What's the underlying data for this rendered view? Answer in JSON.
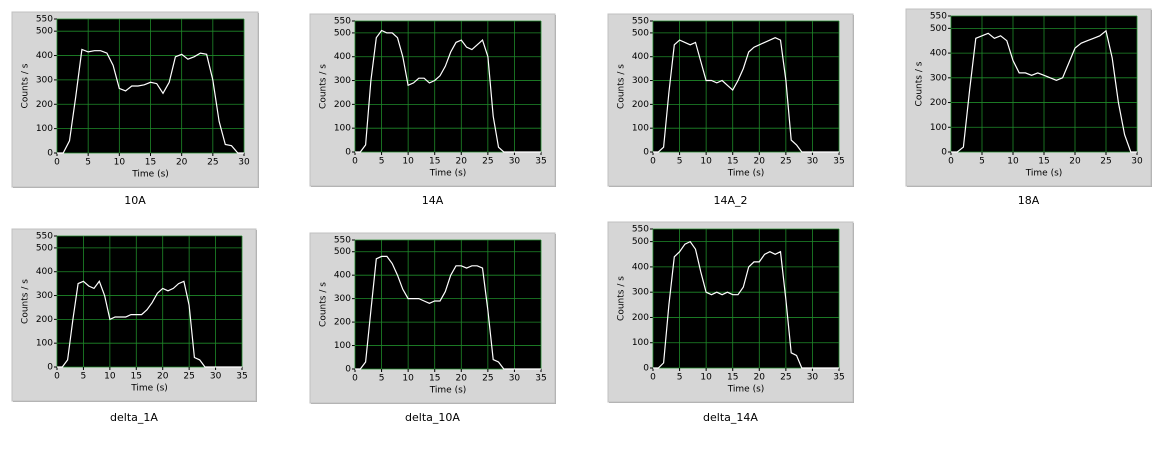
{
  "chart_data": [
    {
      "type": "line",
      "caption": "10A",
      "xlabel": "Time (s)",
      "ylabel": "Counts / s",
      "grid": true,
      "color": "#ffffff",
      "x": [
        0,
        1,
        2,
        3,
        4,
        5,
        6,
        7,
        8,
        9,
        10,
        11,
        12,
        13,
        14,
        15,
        16,
        17,
        18,
        19,
        20,
        21,
        22,
        23,
        24,
        25,
        26,
        27,
        28,
        29,
        30
      ],
      "values": [
        0,
        0,
        50,
        230,
        425,
        415,
        420,
        420,
        410,
        360,
        265,
        255,
        275,
        275,
        280,
        290,
        285,
        245,
        290,
        395,
        405,
        385,
        395,
        410,
        405,
        300,
        130,
        35,
        30,
        0,
        0
      ],
      "xlim": [
        0,
        30
      ],
      "xticks": [
        0,
        5,
        10,
        15,
        20,
        25,
        30
      ],
      "ylim": [
        0,
        550
      ],
      "yticks": [
        0,
        100,
        200,
        300,
        400,
        500,
        550
      ]
    },
    {
      "type": "line",
      "caption": "14A",
      "xlabel": "Time (s)",
      "ylabel": "Counts / s",
      "grid": true,
      "color": "#ffffff",
      "x": [
        0,
        1,
        2,
        3,
        4,
        5,
        6,
        7,
        8,
        9,
        10,
        11,
        12,
        13,
        14,
        15,
        16,
        17,
        18,
        19,
        20,
        21,
        22,
        23,
        24,
        25,
        26,
        27,
        28,
        29,
        30,
        31,
        32,
        33,
        34,
        35
      ],
      "values": [
        0,
        0,
        30,
        300,
        480,
        510,
        500,
        500,
        480,
        400,
        280,
        290,
        310,
        310,
        290,
        300,
        320,
        360,
        420,
        460,
        470,
        440,
        430,
        450,
        470,
        400,
        150,
        20,
        0,
        0,
        0,
        0,
        0,
        0,
        0,
        0
      ],
      "xlim": [
        0,
        35
      ],
      "xticks": [
        0,
        5,
        10,
        15,
        20,
        25,
        30,
        35
      ],
      "ylim": [
        0,
        550
      ],
      "yticks": [
        0,
        100,
        200,
        300,
        400,
        500,
        550
      ]
    },
    {
      "type": "line",
      "caption": "14A_2",
      "xlabel": "Time (s)",
      "ylabel": "Counts / s",
      "grid": true,
      "color": "#ffffff",
      "x": [
        0,
        1,
        2,
        3,
        4,
        5,
        6,
        7,
        8,
        9,
        10,
        11,
        12,
        13,
        14,
        15,
        16,
        17,
        18,
        19,
        20,
        21,
        22,
        23,
        24,
        25,
        26,
        27,
        28,
        29,
        30,
        31,
        32,
        33,
        34,
        35
      ],
      "values": [
        0,
        0,
        20,
        250,
        450,
        470,
        460,
        450,
        460,
        380,
        300,
        300,
        290,
        300,
        280,
        260,
        300,
        350,
        420,
        440,
        450,
        460,
        470,
        480,
        470,
        300,
        50,
        30,
        0,
        0,
        0,
        0,
        0,
        0,
        0,
        0
      ],
      "xlim": [
        0,
        35
      ],
      "xticks": [
        0,
        5,
        10,
        15,
        20,
        25,
        30,
        35
      ],
      "ylim": [
        0,
        550
      ],
      "yticks": [
        0,
        100,
        200,
        300,
        400,
        500,
        550
      ]
    },
    {
      "type": "line",
      "caption": "18A",
      "xlabel": "Time (s)",
      "ylabel": "Counts / s",
      "grid": true,
      "color": "#ffffff",
      "x": [
        0,
        1,
        2,
        3,
        4,
        5,
        6,
        7,
        8,
        9,
        10,
        11,
        12,
        13,
        14,
        15,
        16,
        17,
        18,
        19,
        20,
        21,
        22,
        23,
        24,
        25,
        26,
        27,
        28,
        29,
        30
      ],
      "values": [
        0,
        0,
        20,
        250,
        460,
        470,
        480,
        460,
        470,
        450,
        370,
        320,
        320,
        310,
        320,
        310,
        300,
        290,
        300,
        360,
        420,
        440,
        450,
        460,
        470,
        490,
        380,
        200,
        70,
        0,
        0
      ],
      "xlim": [
        0,
        30
      ],
      "xticks": [
        0,
        5,
        10,
        15,
        20,
        25,
        30
      ],
      "ylim": [
        0,
        550
      ],
      "yticks": [
        0,
        100,
        200,
        300,
        400,
        500,
        550
      ]
    },
    {
      "type": "line",
      "caption": "delta_1A",
      "xlabel": "Time (s)",
      "ylabel": "Counts / s",
      "grid": true,
      "color": "#ffffff",
      "x": [
        0,
        1,
        2,
        3,
        4,
        5,
        6,
        7,
        8,
        9,
        10,
        11,
        12,
        13,
        14,
        15,
        16,
        17,
        18,
        19,
        20,
        21,
        22,
        23,
        24,
        25,
        26,
        27,
        28,
        29,
        30,
        31,
        32,
        33,
        34,
        35
      ],
      "values": [
        0,
        0,
        30,
        200,
        350,
        360,
        340,
        330,
        360,
        300,
        200,
        210,
        210,
        210,
        220,
        220,
        220,
        240,
        270,
        310,
        330,
        320,
        330,
        350,
        360,
        260,
        40,
        30,
        0,
        0,
        0,
        0,
        0,
        0,
        0,
        0
      ],
      "xlim": [
        0,
        35
      ],
      "xticks": [
        0,
        5,
        10,
        15,
        20,
        25,
        30,
        35
      ],
      "ylim": [
        0,
        550
      ],
      "yticks": [
        0,
        100,
        200,
        300,
        400,
        500,
        550
      ]
    },
    {
      "type": "line",
      "caption": "delta_10A",
      "xlabel": "Time (s)",
      "ylabel": "Counts / s",
      "grid": true,
      "color": "#ffffff",
      "x": [
        0,
        1,
        2,
        3,
        4,
        5,
        6,
        7,
        8,
        9,
        10,
        11,
        12,
        13,
        14,
        15,
        16,
        17,
        18,
        19,
        20,
        21,
        22,
        23,
        24,
        25,
        26,
        27,
        28,
        29,
        30,
        31,
        32,
        33,
        34,
        35
      ],
      "values": [
        0,
        0,
        30,
        250,
        470,
        480,
        480,
        450,
        400,
        340,
        300,
        300,
        300,
        290,
        280,
        290,
        290,
        330,
        400,
        440,
        440,
        430,
        440,
        440,
        430,
        250,
        40,
        30,
        0,
        0,
        0,
        0,
        0,
        0,
        0,
        0
      ],
      "xlim": [
        0,
        35
      ],
      "xticks": [
        0,
        5,
        10,
        15,
        20,
        25,
        30,
        35
      ],
      "ylim": [
        0,
        550
      ],
      "yticks": [
        0,
        100,
        200,
        300,
        400,
        500,
        550
      ]
    },
    {
      "type": "line",
      "caption": "delta_14A",
      "xlabel": "Time (s)",
      "ylabel": "Counts / s",
      "grid": true,
      "color": "#ffffff",
      "x": [
        0,
        1,
        2,
        3,
        4,
        5,
        6,
        7,
        8,
        9,
        10,
        11,
        12,
        13,
        14,
        15,
        16,
        17,
        18,
        19,
        20,
        21,
        22,
        23,
        24,
        25,
        26,
        27,
        28,
        29,
        30,
        31,
        32,
        33,
        34,
        35
      ],
      "values": [
        0,
        0,
        20,
        250,
        440,
        460,
        490,
        500,
        470,
        380,
        300,
        290,
        300,
        290,
        300,
        290,
        290,
        320,
        400,
        420,
        420,
        450,
        460,
        450,
        460,
        270,
        60,
        50,
        0,
        0,
        0,
        0,
        0,
        0,
        0,
        0
      ],
      "xlim": [
        0,
        35
      ],
      "xticks": [
        0,
        5,
        10,
        15,
        20,
        25,
        30,
        35
      ],
      "ylim": [
        0,
        550
      ],
      "yticks": [
        0,
        100,
        200,
        300,
        400,
        500,
        550
      ]
    }
  ]
}
